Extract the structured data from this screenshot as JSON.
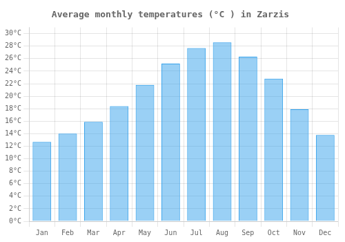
{
  "chart_data": {
    "type": "bar",
    "title": "Average monthly temperatures (°C ) in Zarzis",
    "categories": [
      "Jan",
      "Feb",
      "Mar",
      "Apr",
      "May",
      "Jun",
      "Jul",
      "Aug",
      "Sep",
      "Oct",
      "Nov",
      "Dec"
    ],
    "values": [
      12.7,
      14.0,
      15.9,
      18.4,
      21.8,
      25.2,
      27.7,
      28.6,
      26.3,
      22.8,
      17.9,
      13.8
    ],
    "ylim": [
      0,
      31
    ],
    "yticks": [
      {
        "value": 0,
        "label": "0°C"
      },
      {
        "value": 2,
        "label": "2°C"
      },
      {
        "value": 4,
        "label": "4°C"
      },
      {
        "value": 6,
        "label": "6°C"
      },
      {
        "value": 8,
        "label": "8°C"
      },
      {
        "value": 10,
        "label": "10°C"
      },
      {
        "value": 12,
        "label": "12°C"
      },
      {
        "value": 14,
        "label": "14°C"
      },
      {
        "value": 16,
        "label": "16°C"
      },
      {
        "value": 18,
        "label": "18°C"
      },
      {
        "value": 20,
        "label": "20°C"
      },
      {
        "value": 22,
        "label": "22°C"
      },
      {
        "value": 24,
        "label": "24°C"
      },
      {
        "value": 26,
        "label": "26°C"
      },
      {
        "value": 28,
        "label": "28°C"
      },
      {
        "value": 30,
        "label": "30°C"
      }
    ],
    "grid": true
  }
}
